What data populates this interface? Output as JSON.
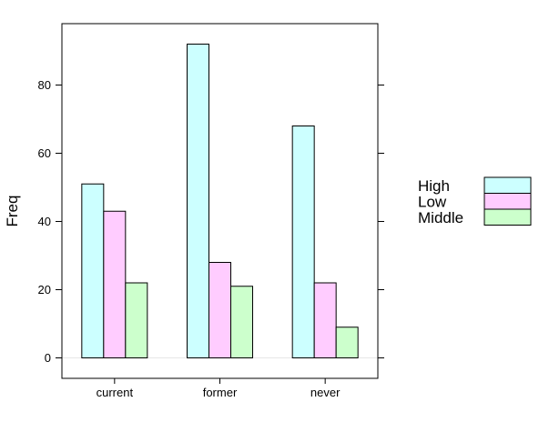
{
  "chart_data": {
    "type": "bar",
    "xlabel": "",
    "ylabel": "Freq",
    "categories": [
      "current",
      "former",
      "never"
    ],
    "series": [
      {
        "name": "High",
        "values": [
          51,
          92,
          68
        ],
        "color": "#CCFFFF"
      },
      {
        "name": "Low",
        "values": [
          43,
          28,
          22
        ],
        "color": "#FFCCFF"
      },
      {
        "name": "Middle",
        "values": [
          22,
          21,
          9
        ],
        "color": "#CCFFCC"
      }
    ],
    "ylim": [
      -6,
      98
    ],
    "yticks": [
      0,
      20,
      40,
      60,
      80
    ],
    "legend_position": "right",
    "grid": false
  }
}
